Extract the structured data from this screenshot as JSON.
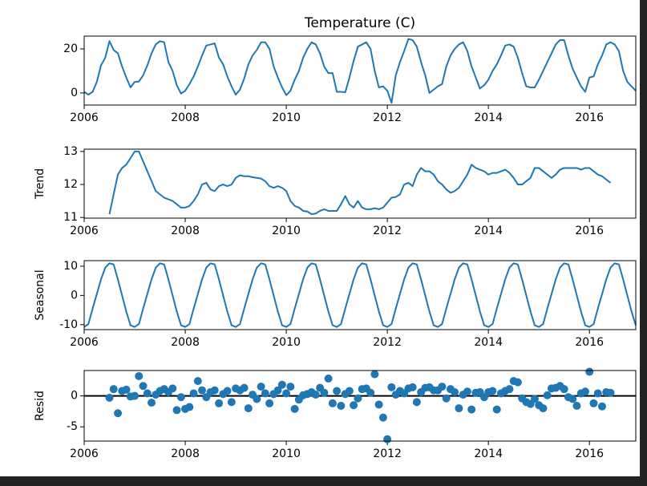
{
  "chart_data": [
    {
      "type": "line",
      "title": "Temperature (C)",
      "color": "#1f77b4",
      "x": [
        2006,
        2006.083,
        2006.167,
        2006.25,
        2006.333,
        2006.417,
        2006.5,
        2006.583,
        2006.667,
        2006.75,
        2006.833,
        2006.917,
        2007,
        2007.083,
        2007.167,
        2007.25,
        2007.333,
        2007.417,
        2007.5,
        2007.583,
        2007.667,
        2007.75,
        2007.833,
        2007.917,
        2008,
        2008.083,
        2008.167,
        2008.25,
        2008.333,
        2008.417,
        2008.5,
        2008.583,
        2008.667,
        2008.75,
        2008.833,
        2008.917,
        2009,
        2009.083,
        2009.167,
        2009.25,
        2009.333,
        2009.417,
        2009.5,
        2009.583,
        2009.667,
        2009.75,
        2009.833,
        2009.917,
        2010,
        2010.083,
        2010.167,
        2010.25,
        2010.333,
        2010.417,
        2010.5,
        2010.583,
        2010.667,
        2010.75,
        2010.833,
        2010.917,
        2011,
        2011.083,
        2011.167,
        2011.25,
        2011.333,
        2011.417,
        2011.5,
        2011.583,
        2011.667,
        2011.75,
        2011.833,
        2011.917,
        2012,
        2012.083,
        2012.167,
        2012.25,
        2012.333,
        2012.417,
        2012.5,
        2012.583,
        2012.667,
        2012.75,
        2012.833,
        2012.917,
        2013,
        2013.083,
        2013.167,
        2013.25,
        2013.333,
        2013.417,
        2013.5,
        2013.583,
        2013.667,
        2013.75,
        2013.833,
        2013.917,
        2014,
        2014.083,
        2014.167,
        2014.25,
        2014.333,
        2014.417,
        2014.5,
        2014.583,
        2014.667,
        2014.75,
        2014.833,
        2014.917,
        2015,
        2015.083,
        2015.167,
        2015.25,
        2015.333,
        2015.417,
        2015.5,
        2015.583,
        2015.667,
        2015.75,
        2015.833,
        2015.917,
        2016,
        2016.083,
        2016.167,
        2016.25,
        2016.333,
        2016.417,
        2016.5,
        2016.583,
        2016.667,
        2016.75,
        2016.833,
        2016.917
      ],
      "values": [
        0.5,
        -0.8,
        0.5,
        5,
        12.5,
        16,
        23.5,
        19.5,
        18,
        12,
        7,
        2.5,
        5,
        5.2,
        8,
        12.5,
        18,
        22,
        23.5,
        23,
        14,
        10,
        3.5,
        -0.3,
        1,
        4,
        7.5,
        12,
        17,
        21.5,
        22,
        22.5,
        16,
        13,
        7.5,
        3,
        -0.8,
        1.5,
        6.5,
        13,
        17,
        19.5,
        23,
        23,
        20,
        12,
        7,
        2.5,
        -1,
        1,
        6,
        10,
        16,
        20,
        23,
        22,
        18,
        12,
        9,
        9,
        0.5,
        0.5,
        0.3,
        7,
        14.5,
        21,
        22,
        23,
        20,
        10,
        2.5,
        3,
        1,
        -4.5,
        8,
        14,
        19,
        24.5,
        24,
        21,
        14,
        8,
        0,
        1.5,
        3,
        4,
        12,
        17,
        20,
        22,
        23,
        19,
        12,
        7,
        2,
        3.5,
        6,
        10,
        13,
        17,
        21.5,
        22,
        21,
        16,
        9,
        3,
        2.5,
        2.5,
        6,
        10,
        14,
        18,
        22,
        24,
        24,
        17,
        11,
        7,
        3,
        0.5,
        7,
        7.5,
        13,
        17,
        22,
        23,
        22,
        19,
        10,
        5,
        3,
        1
      ],
      "xlim": [
        2006,
        2016.917
      ],
      "xticks": [
        2006,
        2008,
        2010,
        2012,
        2014,
        2016
      ],
      "ylim": [
        -5.5,
        25.8
      ],
      "yticks": [
        0,
        20
      ]
    },
    {
      "type": "line",
      "ylabel": "Trend",
      "color": "#1f77b4",
      "x": [
        2006,
        2006.083,
        2006.167,
        2006.25,
        2006.333,
        2006.417,
        2006.5,
        2006.583,
        2006.667,
        2006.75,
        2006.833,
        2006.917,
        2007,
        2007.083,
        2007.167,
        2007.25,
        2007.333,
        2007.417,
        2007.5,
        2007.583,
        2007.667,
        2007.75,
        2007.833,
        2007.917,
        2008,
        2008.083,
        2008.167,
        2008.25,
        2008.333,
        2008.417,
        2008.5,
        2008.583,
        2008.667,
        2008.75,
        2008.833,
        2008.917,
        2009,
        2009.083,
        2009.167,
        2009.25,
        2009.333,
        2009.417,
        2009.5,
        2009.583,
        2009.667,
        2009.75,
        2009.833,
        2009.917,
        2010,
        2010.083,
        2010.167,
        2010.25,
        2010.333,
        2010.417,
        2010.5,
        2010.583,
        2010.667,
        2010.75,
        2010.833,
        2010.917,
        2011,
        2011.083,
        2011.167,
        2011.25,
        2011.333,
        2011.417,
        2011.5,
        2011.583,
        2011.667,
        2011.75,
        2011.833,
        2011.917,
        2012,
        2012.083,
        2012.167,
        2012.25,
        2012.333,
        2012.417,
        2012.5,
        2012.583,
        2012.667,
        2012.75,
        2012.833,
        2012.917,
        2013,
        2013.083,
        2013.167,
        2013.25,
        2013.333,
        2013.417,
        2013.5,
        2013.583,
        2013.667,
        2013.75,
        2013.833,
        2013.917,
        2014,
        2014.083,
        2014.167,
        2014.25,
        2014.333,
        2014.417,
        2014.5,
        2014.583,
        2014.667,
        2014.75,
        2014.833,
        2014.917,
        2015,
        2015.083,
        2015.167,
        2015.25,
        2015.333,
        2015.417,
        2015.5,
        2015.583,
        2015.667,
        2015.75,
        2015.833,
        2015.917,
        2016,
        2016.083,
        2016.167,
        2016.25,
        2016.333,
        2016.417,
        2016.5,
        2016.583,
        2016.667,
        2016.75,
        2016.833,
        2016.917
      ],
      "values": [
        null,
        null,
        null,
        null,
        null,
        null,
        11.1,
        11.7,
        12.3,
        12.5,
        12.6,
        12.8,
        13,
        13,
        12.7,
        12.4,
        12.1,
        11.8,
        11.7,
        11.6,
        11.55,
        11.5,
        11.4,
        11.3,
        11.3,
        11.35,
        11.5,
        11.7,
        12,
        12.05,
        11.85,
        11.8,
        11.95,
        12,
        11.95,
        12,
        12.2,
        12.28,
        12.25,
        12.25,
        12.22,
        12.2,
        12.18,
        12.1,
        11.95,
        11.9,
        11.95,
        11.9,
        11.8,
        11.5,
        11.35,
        11.3,
        11.2,
        11.18,
        11.1,
        11.12,
        11.2,
        11.25,
        11.2,
        11.2,
        11.2,
        11.4,
        11.65,
        11.4,
        11.3,
        11.5,
        11.3,
        11.25,
        11.25,
        11.28,
        11.25,
        11.3,
        11.45,
        11.6,
        11.62,
        11.7,
        12,
        12.05,
        11.95,
        12.3,
        12.5,
        12.4,
        12.4,
        12.3,
        12.1,
        12,
        11.85,
        11.75,
        11.8,
        11.9,
        12.1,
        12.3,
        12.6,
        12.5,
        12.45,
        12.4,
        12.3,
        12.35,
        12.35,
        12.4,
        12.45,
        12.35,
        12.2,
        12,
        12,
        12.1,
        12.2,
        12.5,
        12.5,
        12.4,
        12.3,
        12.2,
        12.3,
        12.45,
        12.5,
        12.5,
        12.5,
        12.5,
        12.45,
        12.5,
        12.5,
        12.4,
        12.3,
        12.25,
        12.15,
        12.05,
        null,
        null,
        null,
        null,
        null,
        null
      ],
      "xlim": [
        2006,
        2016.917
      ],
      "xticks": [
        2006,
        2008,
        2010,
        2012,
        2014,
        2016
      ],
      "ylim": [
        10.98,
        13.07
      ],
      "yticks": [
        11,
        12,
        13
      ]
    },
    {
      "type": "line",
      "ylabel": "Seasonal",
      "color": "#1f77b4",
      "x": [
        2006,
        2006.083,
        2006.167,
        2006.25,
        2006.333,
        2006.417,
        2006.5,
        2006.583,
        2006.667,
        2006.75,
        2006.833,
        2006.917,
        2007,
        2007.083,
        2007.167,
        2007.25,
        2007.333,
        2007.417,
        2007.5,
        2007.583,
        2007.667,
        2007.75,
        2007.833,
        2007.917,
        2008,
        2008.083,
        2008.167,
        2008.25,
        2008.333,
        2008.417,
        2008.5,
        2008.583,
        2008.667,
        2008.75,
        2008.833,
        2008.917,
        2009,
        2009.083,
        2009.167,
        2009.25,
        2009.333,
        2009.417,
        2009.5,
        2009.583,
        2009.667,
        2009.75,
        2009.833,
        2009.917,
        2010,
        2010.083,
        2010.167,
        2010.25,
        2010.333,
        2010.417,
        2010.5,
        2010.583,
        2010.667,
        2010.75,
        2010.833,
        2010.917,
        2011,
        2011.083,
        2011.167,
        2011.25,
        2011.333,
        2011.417,
        2011.5,
        2011.583,
        2011.667,
        2011.75,
        2011.833,
        2011.917,
        2012,
        2012.083,
        2012.167,
        2012.25,
        2012.333,
        2012.417,
        2012.5,
        2012.583,
        2012.667,
        2012.75,
        2012.833,
        2012.917,
        2013,
        2013.083,
        2013.167,
        2013.25,
        2013.333,
        2013.417,
        2013.5,
        2013.583,
        2013.667,
        2013.75,
        2013.833,
        2013.917,
        2014,
        2014.083,
        2014.167,
        2014.25,
        2014.333,
        2014.417,
        2014.5,
        2014.583,
        2014.667,
        2014.75,
        2014.833,
        2014.917,
        2015,
        2015.083,
        2015.167,
        2015.25,
        2015.333,
        2015.417,
        2015.5,
        2015.583,
        2015.667,
        2015.75,
        2015.833,
        2015.917,
        2016,
        2016.083,
        2016.167,
        2016.25,
        2016.333,
        2016.417,
        2016.5,
        2016.583,
        2016.667,
        2016.75,
        2016.833,
        2016.917
      ],
      "values": [
        -10.8,
        -9.8,
        -4.5,
        0.5,
        5.5,
        9.5,
        11,
        10.6,
        5.5,
        0,
        -5.5,
        -10.2,
        -10.8,
        -9.8,
        -4.5,
        0.5,
        5.5,
        9.5,
        11,
        10.6,
        5.5,
        0,
        -5.5,
        -10.2,
        -10.8,
        -9.8,
        -4.5,
        0.5,
        5.5,
        9.5,
        11,
        10.6,
        5.5,
        0,
        -5.5,
        -10.2,
        -10.8,
        -9.8,
        -4.5,
        0.5,
        5.5,
        9.5,
        11,
        10.6,
        5.5,
        0,
        -5.5,
        -10.2,
        -10.8,
        -9.8,
        -4.5,
        0.5,
        5.5,
        9.5,
        11,
        10.6,
        5.5,
        0,
        -5.5,
        -10.2,
        -10.8,
        -9.8,
        -4.5,
        0.5,
        5.5,
        9.5,
        11,
        10.6,
        5.5,
        0,
        -5.5,
        -10.2,
        -10.8,
        -9.8,
        -4.5,
        0.5,
        5.5,
        9.5,
        11,
        10.6,
        5.5,
        0,
        -5.5,
        -10.2,
        -10.8,
        -9.8,
        -4.5,
        0.5,
        5.5,
        9.5,
        11,
        10.6,
        5.5,
        0,
        -5.5,
        -10.2,
        -10.8,
        -9.8,
        -4.5,
        0.5,
        5.5,
        9.5,
        11,
        10.6,
        5.5,
        0,
        -5.5,
        -10.2,
        -10.8,
        -9.8,
        -4.5,
        0.5,
        5.5,
        9.5,
        11,
        10.6,
        5.5,
        0,
        -5.5,
        -10.2,
        -10.8,
        -9.8,
        -4.5,
        0.5,
        5.5,
        9.5,
        11,
        10.6,
        5.5,
        0,
        -5.5,
        -10.2
      ],
      "xlim": [
        2006,
        2016.917
      ],
      "xticks": [
        2006,
        2008,
        2010,
        2012,
        2014,
        2016
      ],
      "ylim": [
        -11.7,
        11.9
      ],
      "yticks": [
        -10,
        0,
        10
      ]
    },
    {
      "type": "scatter",
      "ylabel": "Resid",
      "color": "#1f77b4",
      "hline": 0,
      "x": [
        2006,
        2006.083,
        2006.167,
        2006.25,
        2006.333,
        2006.417,
        2006.5,
        2006.583,
        2006.667,
        2006.75,
        2006.833,
        2006.917,
        2007,
        2007.083,
        2007.167,
        2007.25,
        2007.333,
        2007.417,
        2007.5,
        2007.583,
        2007.667,
        2007.75,
        2007.833,
        2007.917,
        2008,
        2008.083,
        2008.167,
        2008.25,
        2008.333,
        2008.417,
        2008.5,
        2008.583,
        2008.667,
        2008.75,
        2008.833,
        2008.917,
        2009,
        2009.083,
        2009.167,
        2009.25,
        2009.333,
        2009.417,
        2009.5,
        2009.583,
        2009.667,
        2009.75,
        2009.833,
        2009.917,
        2010,
        2010.083,
        2010.167,
        2010.25,
        2010.333,
        2010.417,
        2010.5,
        2010.583,
        2010.667,
        2010.75,
        2010.833,
        2010.917,
        2011,
        2011.083,
        2011.167,
        2011.25,
        2011.333,
        2011.417,
        2011.5,
        2011.583,
        2011.667,
        2011.75,
        2011.833,
        2011.917,
        2012,
        2012.083,
        2012.167,
        2012.25,
        2012.333,
        2012.417,
        2012.5,
        2012.583,
        2012.667,
        2012.75,
        2012.833,
        2012.917,
        2013,
        2013.083,
        2013.167,
        2013.25,
        2013.333,
        2013.417,
        2013.5,
        2013.583,
        2013.667,
        2013.75,
        2013.833,
        2013.917,
        2014,
        2014.083,
        2014.167,
        2014.25,
        2014.333,
        2014.417,
        2014.5,
        2014.583,
        2014.667,
        2014.75,
        2014.833,
        2014.917,
        2015,
        2015.083,
        2015.167,
        2015.25,
        2015.333,
        2015.417,
        2015.5,
        2015.583,
        2015.667,
        2015.75,
        2015.833,
        2015.917,
        2016,
        2016.083,
        2016.167,
        2016.25,
        2016.333,
        2016.417,
        2016.5,
        2016.583,
        2016.667,
        2016.75,
        2016.833,
        2016.917
      ],
      "values": [
        null,
        null,
        null,
        null,
        null,
        null,
        -0.3,
        1.1,
        -2.8,
        0.8,
        1,
        -0.1,
        0,
        3.2,
        1.6,
        0.4,
        -1.1,
        0.2,
        0.8,
        1.1,
        0.6,
        1.2,
        -2.3,
        -0.2,
        -2.1,
        -1.8,
        0.4,
        2.4,
        0.9,
        -0.2,
        0.6,
        0.9,
        -1.2,
        0.3,
        0.8,
        -1,
        1.2,
        0.9,
        1.3,
        -2,
        0.2,
        -0.5,
        1.5,
        0.4,
        -1.2,
        0.3,
        0.9,
        1.8,
        0.4,
        1.5,
        -2.1,
        -0.6,
        0.1,
        0.3,
        0.6,
        0.2,
        1.3,
        0.5,
        2.8,
        -1.2,
        0.8,
        -1.6,
        0.3,
        0.8,
        -1.5,
        -0.4,
        1.1,
        1.2,
        0.5,
        3.5,
        -1.4,
        -3.5,
        -7,
        1.4,
        0.2,
        0.8,
        0.4,
        1.2,
        1.4,
        -1,
        0.6,
        1.3,
        1.4,
        0.9,
        0.9,
        1.5,
        -0.4,
        1.1,
        0.6,
        -2,
        0.2,
        0.7,
        -2.2,
        0.5,
        0.6,
        -0.2,
        0.6,
        0.8,
        -2.2,
        0.4,
        0.8,
        1.1,
        2.4,
        2.2,
        -0.4,
        -1,
        -1.3,
        -0.5,
        -1.5,
        -2,
        0.1,
        1.2,
        1.3,
        1.6,
        1.1,
        -0.2,
        -0.5,
        -1.6,
        0.4,
        0.7,
        3.9,
        -1.2,
        0.4,
        -1.7,
        0.6,
        0.5,
        null,
        null,
        null,
        null,
        null,
        null
      ],
      "xlim": [
        2006,
        2016.917
      ],
      "xticks": [
        2006,
        2008,
        2010,
        2012,
        2014,
        2016
      ],
      "ylim": [
        -7.3,
        4.1
      ],
      "yticks": [
        -5,
        0
      ]
    }
  ]
}
